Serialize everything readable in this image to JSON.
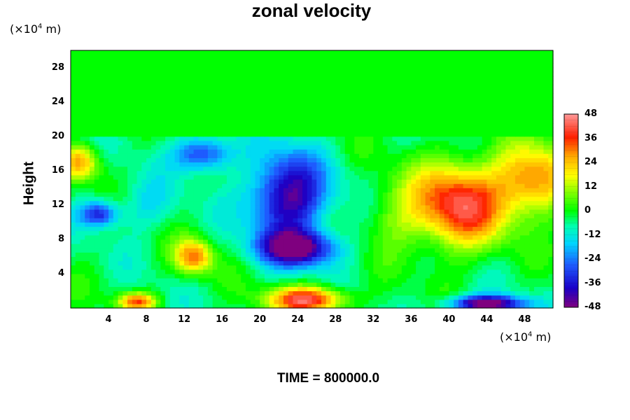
{
  "chart_data": {
    "type": "heatmap",
    "title": "zonal velocity",
    "xlabel": "",
    "ylabel": "Height",
    "x_unit": "(×10",
    "x_unit_exp": "4",
    "x_unit_tail": " m)",
    "y_unit": "(×10",
    "y_unit_exp": "4",
    "y_unit_tail": " m)",
    "xlim": [
      0,
      51
    ],
    "ylim": [
      0,
      30
    ],
    "x_ticks": [
      "4",
      "8",
      "12",
      "16",
      "20",
      "24",
      "28",
      "32",
      "36",
      "40",
      "44",
      "48"
    ],
    "y_ticks": [
      "4",
      "8",
      "12",
      "16",
      "20",
      "24",
      "28"
    ],
    "colorbar": {
      "min": -48,
      "max": 48,
      "ticks": [
        "48",
        "36",
        "24",
        "12",
        "0",
        "-12",
        "-24",
        "-36",
        "-48"
      ]
    },
    "footer": "TIME = 800000.0",
    "features": [
      {
        "x": 41,
        "y": 12,
        "value": 44,
        "sx": 5,
        "sy": 5
      },
      {
        "x": 49,
        "y": 15,
        "value": 34,
        "sx": 4,
        "sy": 4
      },
      {
        "x": 23,
        "y": 13,
        "value": -42,
        "sx": 4,
        "sy": 5
      },
      {
        "x": 24,
        "y": 7,
        "value": -44,
        "sx": 4,
        "sy": 2
      },
      {
        "x": 14,
        "y": 18,
        "value": -30,
        "sx": 3,
        "sy": 2
      },
      {
        "x": 25,
        "y": 1,
        "value": 46,
        "sx": 4,
        "sy": 1.5
      },
      {
        "x": 44,
        "y": 0.5,
        "value": -48,
        "sx": 4,
        "sy": 1
      },
      {
        "x": 13,
        "y": 6,
        "value": 34,
        "sx": 2,
        "sy": 2
      },
      {
        "x": 7,
        "y": 0.8,
        "value": 36,
        "sx": 2,
        "sy": 1
      },
      {
        "x": 1,
        "y": 17,
        "value": 30,
        "sx": 2,
        "sy": 2
      },
      {
        "x": 3,
        "y": 11,
        "value": -32,
        "sx": 2,
        "sy": 1.5
      },
      {
        "x": 34,
        "y": 11,
        "value": 10,
        "sx": 3,
        "sy": 4
      },
      {
        "x": 8,
        "y": 12,
        "value": -10,
        "sx": 3,
        "sy": 3
      }
    ]
  }
}
